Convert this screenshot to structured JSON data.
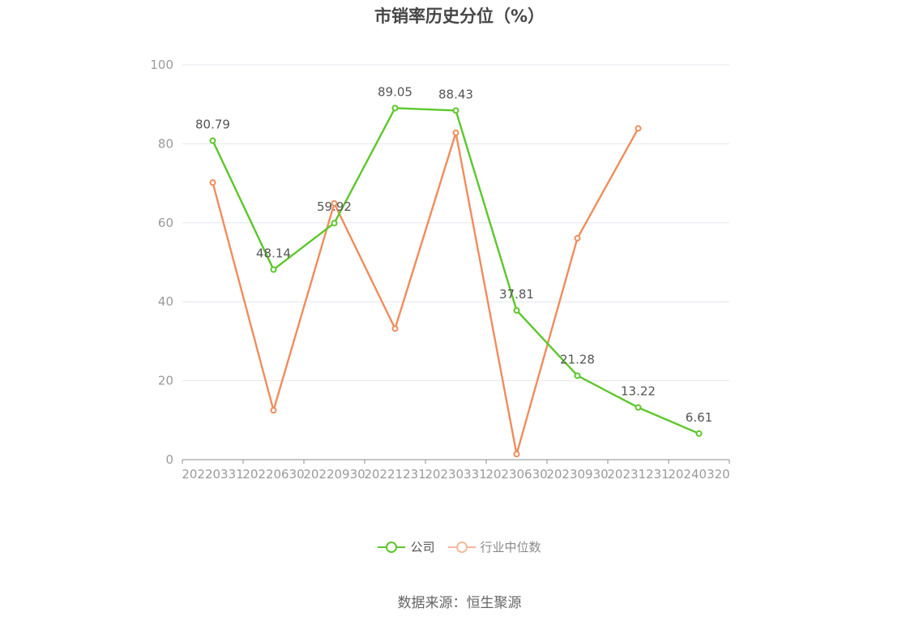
{
  "chart_data": {
    "type": "line",
    "title": "市销率历史分位（%）",
    "categories": [
      "20220331",
      "20220630",
      "20220930",
      "20221231",
      "20230331",
      "20230630",
      "20230930",
      "20231231",
      "20240320"
    ],
    "ylim": [
      0,
      100
    ],
    "yticks": [
      0,
      20,
      40,
      60,
      80,
      100
    ],
    "grid": true,
    "legend_position": "bottom-center",
    "series": [
      {
        "name": "公司",
        "color": "#5cc72b",
        "values": [
          80.79,
          48.14,
          59.92,
          89.05,
          88.43,
          37.81,
          21.28,
          13.22,
          6.61
        ],
        "labels": [
          "80.79",
          "48.14",
          "59.92",
          "89.05",
          "88.43",
          "37.81",
          "21.28",
          "13.22",
          "6.61"
        ]
      },
      {
        "name": "行业中位数",
        "color": "#f08c5c",
        "legend_color": "#f7b89a",
        "values": [
          70.2,
          12.5,
          64.9,
          33.2,
          82.8,
          1.4,
          56.1,
          83.9,
          null
        ]
      }
    ]
  },
  "source": "数据来源：恒生聚源"
}
